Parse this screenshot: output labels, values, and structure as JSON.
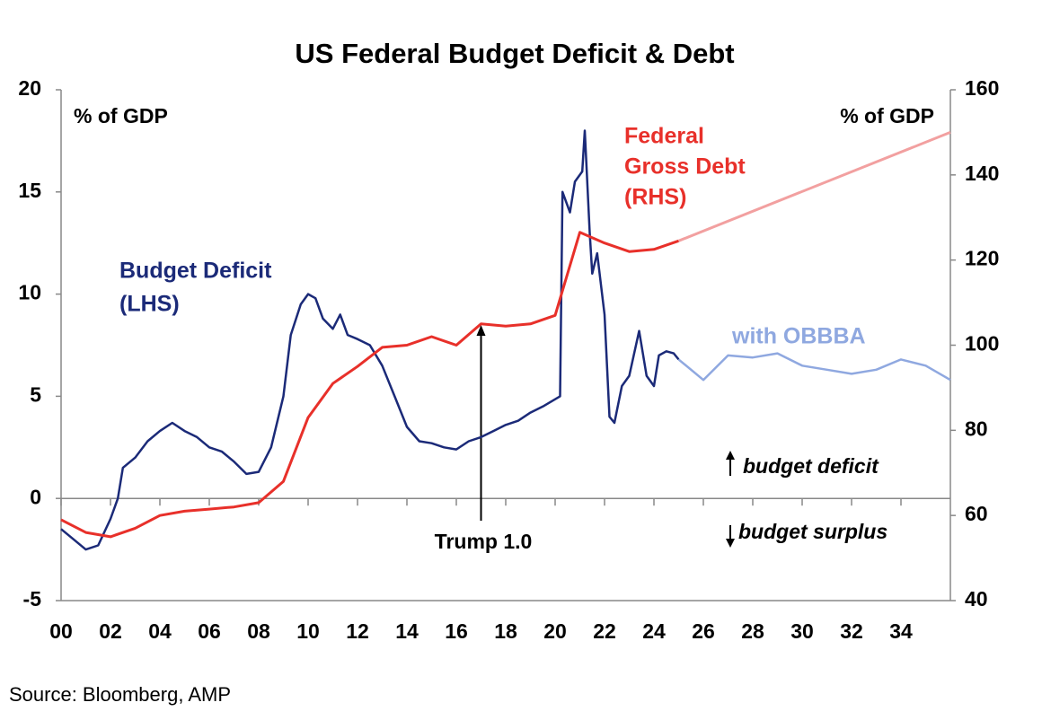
{
  "chart_data": {
    "type": "line",
    "title": "US Federal Budget Deficit & Debt",
    "y_axis_label": "% of GDP",
    "y2_axis_label": "% of GDP",
    "source": "Source: Bloomberg, AMP",
    "xlim": [
      2000,
      2036
    ],
    "xticks": [
      {
        "value": 2000,
        "label": "00"
      },
      {
        "value": 2002,
        "label": "02"
      },
      {
        "value": 2004,
        "label": "04"
      },
      {
        "value": 2006,
        "label": "06"
      },
      {
        "value": 2008,
        "label": "08"
      },
      {
        "value": 2010,
        "label": "10"
      },
      {
        "value": 2012,
        "label": "12"
      },
      {
        "value": 2014,
        "label": "14"
      },
      {
        "value": 2016,
        "label": "16"
      },
      {
        "value": 2018,
        "label": "18"
      },
      {
        "value": 2020,
        "label": "20"
      },
      {
        "value": 2022,
        "label": "22"
      },
      {
        "value": 2024,
        "label": "24"
      },
      {
        "value": 2026,
        "label": "26"
      },
      {
        "value": 2028,
        "label": "28"
      },
      {
        "value": 2030,
        "label": "30"
      },
      {
        "value": 2032,
        "label": "32"
      },
      {
        "value": 2034,
        "label": "34"
      }
    ],
    "ylim": [
      -5,
      20
    ],
    "yticks": [
      -5,
      0,
      5,
      10,
      15,
      20
    ],
    "y2lim": [
      40,
      160
    ],
    "y2ticks": [
      40,
      60,
      80,
      100,
      120,
      140,
      160
    ],
    "series": [
      {
        "label": [
          "Budget Deficit",
          "(LHS)"
        ],
        "color": "#1b2a78",
        "x": [
          2000,
          2000.5,
          2001,
          2001.5,
          2002,
          2002.3,
          2002.5,
          2003,
          2003.5,
          2004,
          2004.5,
          2005,
          2005.5,
          2006,
          2006.5,
          2007,
          2007.5,
          2008,
          2008.5,
          2009,
          2009.3,
          2009.7,
          2010,
          2010.3,
          2010.6,
          2011,
          2011.3,
          2011.6,
          2012,
          2012.5,
          2013,
          2013.5,
          2014,
          2014.5,
          2015,
          2015.5,
          2016,
          2016.5,
          2017,
          2017.5,
          2018,
          2018.5,
          2019,
          2019.5,
          2020.2,
          2020.3,
          2020.6,
          2020.8,
          2021.1,
          2021.2,
          2021.4,
          2021.5,
          2021.7,
          2022,
          2022.2,
          2022.4,
          2022.7,
          2023,
          2023.4,
          2023.7,
          2024,
          2024.2,
          2024.5,
          2024.8,
          2025
        ],
        "values": [
          -1.5,
          -2,
          -2.5,
          -2.3,
          -1,
          0,
          1.5,
          2,
          2.8,
          3.3,
          3.7,
          3.3,
          3,
          2.5,
          2.3,
          1.8,
          1.2,
          1.3,
          2.5,
          5,
          8,
          9.5,
          10,
          9.8,
          8.8,
          8.3,
          9,
          8,
          7.8,
          7.5,
          6.5,
          5,
          3.5,
          2.8,
          2.7,
          2.5,
          2.4,
          2.8,
          3,
          3.3,
          3.6,
          3.8,
          4.2,
          4.5,
          5,
          15,
          14,
          15.5,
          16,
          18,
          13,
          11,
          12,
          9,
          4,
          3.7,
          5.5,
          6,
          8.2,
          6,
          5.5,
          7,
          7.2,
          7.1,
          6.8
        ]
      },
      {
        "label": [
          "with OBBBA"
        ],
        "color": "#8fa8e0",
        "x": [
          2025,
          2026,
          2027,
          2028,
          2029,
          2030,
          2031,
          2032,
          2033,
          2034,
          2035,
          2036
        ],
        "values": [
          6.8,
          5.8,
          7,
          6.9,
          7.1,
          6.5,
          6.3,
          6.1,
          6.3,
          6.8,
          6.5,
          5.8
        ]
      },
      {
        "label": [
          "Federal",
          "Gross Debt",
          "(RHS)"
        ],
        "color": "#e8302a",
        "axis": "y2",
        "x": [
          2000,
          2001,
          2002,
          2003,
          2004,
          2005,
          2006,
          2007,
          2008,
          2009,
          2010,
          2011,
          2012,
          2013,
          2014,
          2015,
          2016,
          2017,
          2018,
          2019,
          2020,
          2021,
          2022,
          2023,
          2024,
          2025
        ],
        "values": [
          59,
          56,
          55,
          57,
          60,
          61,
          61.5,
          62,
          63,
          68,
          83,
          91,
          95,
          99.5,
          100,
          102,
          100,
          105,
          104.5,
          105,
          107,
          126.5,
          124,
          122,
          122.5,
          124.5
        ]
      },
      {
        "color": "#f2a0a0",
        "axis": "y2",
        "x": [
          2025,
          2036
        ],
        "values": [
          124.5,
          150
        ]
      }
    ],
    "annotations": [
      {
        "text": "Trump 1.0",
        "x": 2017
      },
      {
        "text": "budget deficit"
      },
      {
        "text": "budget surplus"
      }
    ]
  }
}
